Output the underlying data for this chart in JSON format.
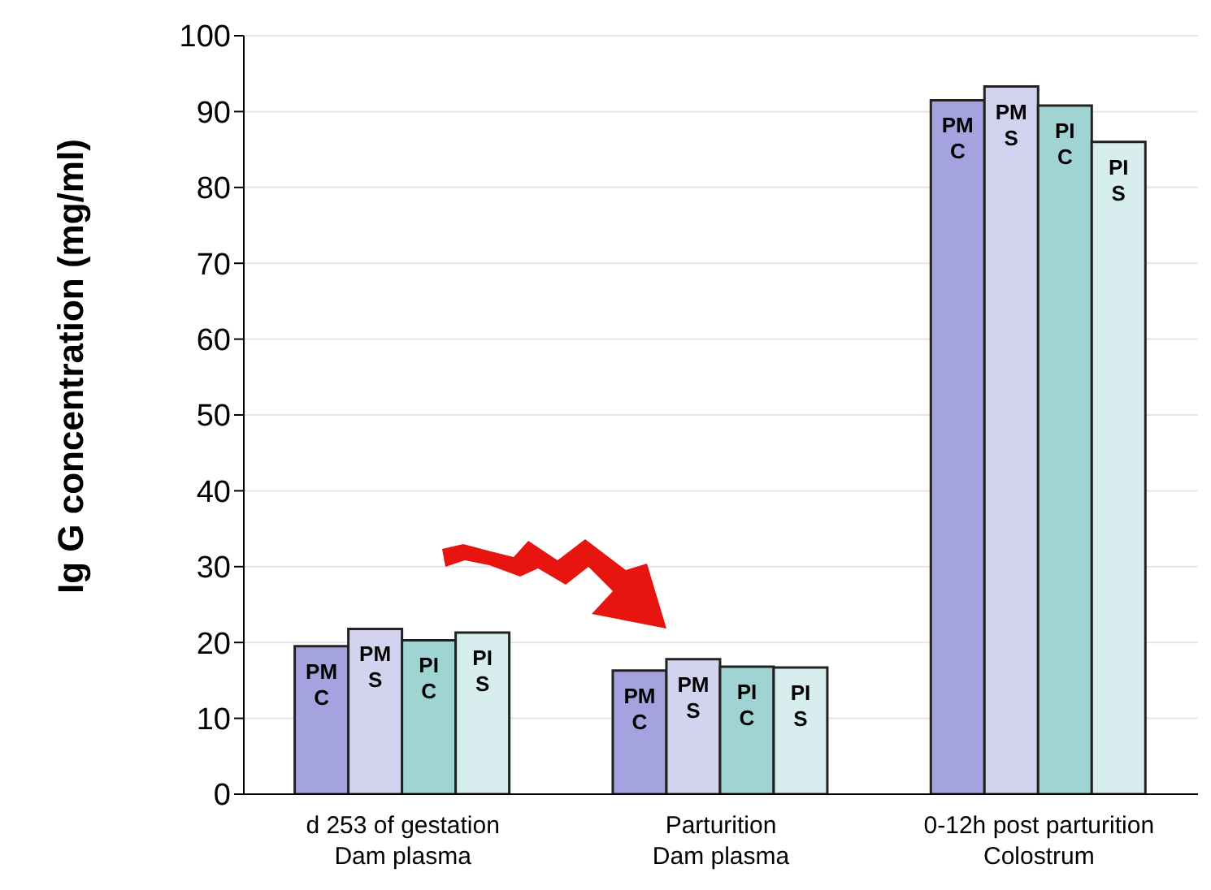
{
  "chart_data": {
    "type": "bar",
    "ylabel": "Ig G concentration (mg/ml)",
    "categories": [
      "d 253 of gestation\nDam plasma",
      "Parturition\nDam plasma",
      "0-12h post parturition\nColostrum"
    ],
    "series": [
      {
        "name": "PM C",
        "color": "#a5a3df",
        "values": [
          19.5,
          16.3,
          91.5
        ]
      },
      {
        "name": "PM S",
        "color": "#d3d3f0",
        "values": [
          21.8,
          17.8,
          93.3
        ]
      },
      {
        "name": "PI C",
        "color": "#9fd4d3",
        "values": [
          20.3,
          16.8,
          90.8
        ]
      },
      {
        "name": "PI S",
        "color": "#d8eded",
        "values": [
          21.3,
          16.7,
          86.0
        ]
      }
    ],
    "ylim": [
      0,
      100
    ],
    "yticks": [
      0,
      10,
      20,
      30,
      40,
      50,
      60,
      70,
      80,
      90,
      100
    ],
    "grid": "y",
    "legend": false
  }
}
